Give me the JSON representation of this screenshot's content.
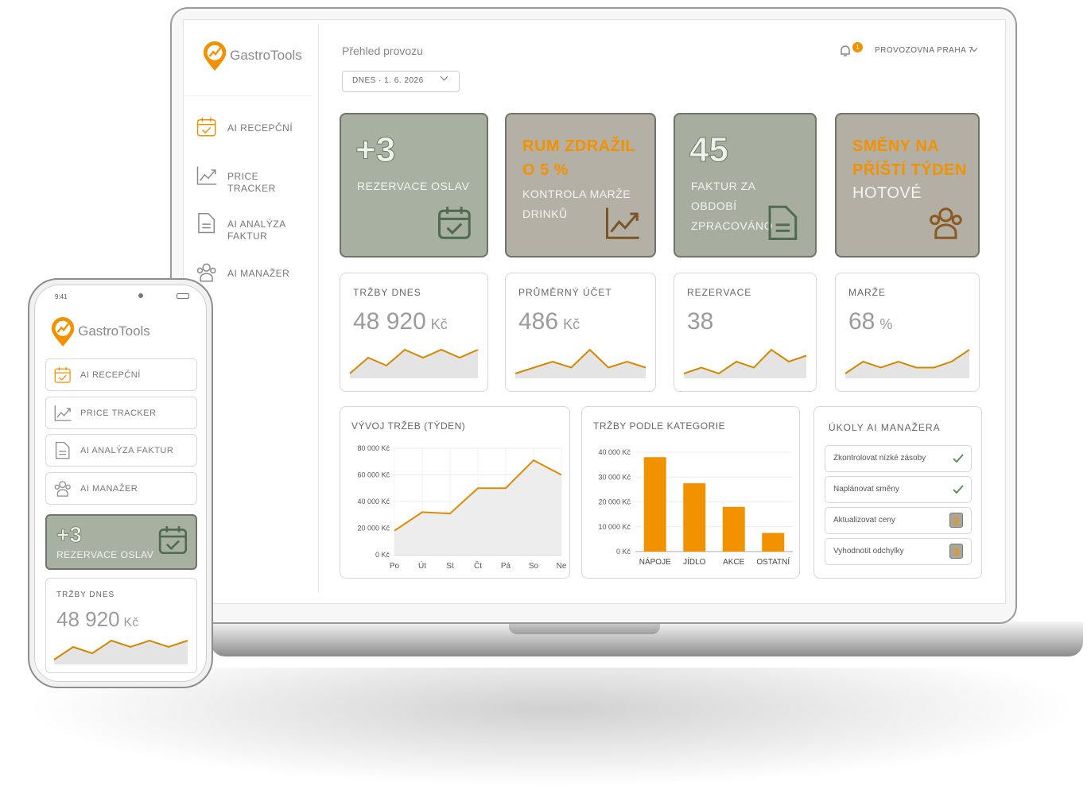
{
  "brand": "GastroTools",
  "nav": [
    "AI RECEPČNÍ",
    "PRICE TRACKER",
    "AI ANALÝZA FAKTUR",
    "AI MANAŽER"
  ],
  "header": {
    "title": "Přehled provozu",
    "date": "DNES · 1. 6. 2026",
    "notifications": "1",
    "location": "PROVOZOVNA PRAHA 7"
  },
  "phone": {
    "time": "9:41"
  },
  "highlights": [
    {
      "figure": "+3",
      "caption": "REZERVACE OSLAV"
    },
    {
      "headline": "RUM ZDRAŽIL O 5 %",
      "caption": "KONTROLA MARŽE DRINKŮ"
    },
    {
      "figure": "45",
      "caption": "FAKTUR ZA OBDOBÍ ZPRACOVÁNO"
    },
    {
      "headline": "SMĚNY NA PŘÍŠTÍ TÝDEN",
      "caption": "HOTOVÉ"
    }
  ],
  "kpis": [
    {
      "label": "TRŽBY DNES",
      "value": "48 920",
      "unit": "Kč",
      "trend": [
        2,
        4,
        3,
        5,
        4,
        5,
        4,
        5
      ]
    },
    {
      "label": "PRŮMĚRNÝ ÚČET",
      "value": "486",
      "unit": "Kč",
      "trend": [
        2,
        3,
        4,
        3,
        6,
        3,
        4,
        3
      ]
    },
    {
      "label": "REZERVACE",
      "value": "38",
      "unit": null,
      "trend": [
        2,
        3,
        2,
        4,
        3,
        6,
        4,
        5
      ]
    },
    {
      "label": "MARŽE",
      "value": "68",
      "unit": "%",
      "trend": [
        2,
        4,
        3,
        4,
        3,
        3,
        4,
        6
      ]
    }
  ],
  "chart_data": [
    {
      "type": "line",
      "title": "VÝVOJ TRŽEB (TÝDEN)",
      "color": "#e08a00",
      "categories": [
        "Po",
        "Út",
        "St",
        "Čt",
        "Pá",
        "So",
        "Ne"
      ],
      "values": [
        18000,
        32000,
        31000,
        50000,
        50000,
        71000,
        60000
      ],
      "ylim": [
        0,
        80000
      ],
      "yticks": [
        {
          "value": 0,
          "label": "0 Kč"
        },
        {
          "value": 20000,
          "label": "20 000 Kč"
        },
        {
          "value": 40000,
          "label": "40 000 Kč"
        },
        {
          "value": 60000,
          "label": "60 000 Kč"
        },
        {
          "value": 80000,
          "label": "80 000 Kč"
        }
      ],
      "grid": true
    },
    {
      "type": "bar",
      "title": "TRŽBY PODLE KATEGORIE",
      "color": "#f39200",
      "categories": [
        "NÁPOJE",
        "JÍDLO",
        "AKCE",
        "OSTATNÍ"
      ],
      "values": [
        38000,
        27500,
        18000,
        7500
      ],
      "ylim": [
        0,
        40000
      ],
      "yticks": [
        {
          "value": 0,
          "label": "0 Kč"
        },
        {
          "value": 10000,
          "label": "10 000 Kč"
        },
        {
          "value": 20000,
          "label": "20 000 Kč"
        },
        {
          "value": 30000,
          "label": "30 000 Kč"
        },
        {
          "value": 40000,
          "label": "40 000 Kč"
        }
      ],
      "grid": true
    }
  ],
  "tasks": {
    "title": "ÚKOLY AI MANAŽERA",
    "items": [
      {
        "text": "Zkontrolovat nízké zásoby",
        "done": true
      },
      {
        "text": "Naplánovat směny",
        "done": true
      },
      {
        "text": "Aktualizovat ceny",
        "badge": "2"
      },
      {
        "text": "Vyhodnotit odchylky",
        "badge": "3"
      }
    ]
  }
}
